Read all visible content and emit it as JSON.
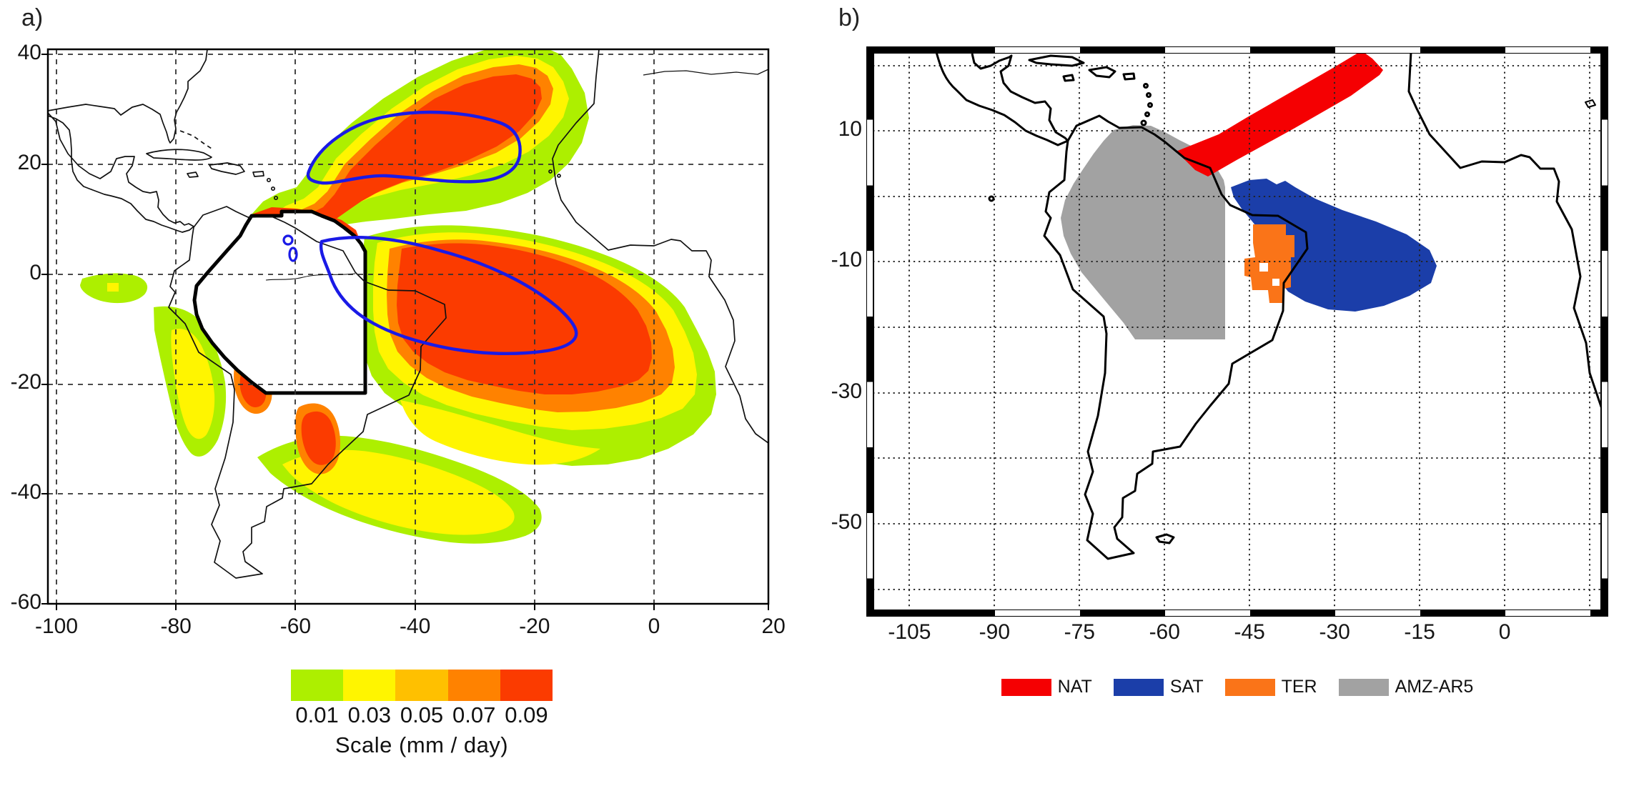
{
  "figure": {
    "panel_a": {
      "label": "a)",
      "x_ticks": [
        "-100",
        "-80",
        "-60",
        "-40",
        "-20",
        "0",
        "20"
      ],
      "y_ticks": [
        "40",
        "20",
        "0",
        "-20",
        "-40",
        "-60"
      ],
      "colorbar": {
        "values": [
          "0.01",
          "0.03",
          "0.05",
          "0.07",
          "0.09"
        ],
        "colors": [
          "#ADEF00",
          "#FFF500",
          "#FFC000",
          "#FF8200",
          "#FB3B00"
        ],
        "title": "Scale (mm / day)"
      },
      "overlay_colors": {
        "amazon_outline": "#000000",
        "contour": "#1A1AE6"
      }
    },
    "panel_b": {
      "label": "b)",
      "x_ticks": [
        "-105",
        "-90",
        "-75",
        "-60",
        "-45",
        "-30",
        "-15",
        "0"
      ],
      "y_ticks": [
        "10",
        "-10",
        "-30",
        "-50"
      ],
      "legend": [
        {
          "label": "NAT",
          "color": "#F50002"
        },
        {
          "label": "SAT",
          "color": "#1B3EA9"
        },
        {
          "label": "TER",
          "color": "#FA7418"
        },
        {
          "label": "AMZ-AR5",
          "color": "#A2A2A2"
        }
      ]
    }
  },
  "chart_data": [
    {
      "type": "heatmap",
      "panel": "a",
      "description": "Moisture source intensity map over South America and the Atlantic",
      "lon_range": [
        -100,
        20
      ],
      "lat_range": [
        -60,
        40
      ],
      "lon_ticks": [
        -100,
        -80,
        -60,
        -40,
        -20,
        0,
        20
      ],
      "lat_ticks": [
        40,
        20,
        0,
        -20,
        -40,
        -60
      ],
      "colorbar_title": "Scale (mm / day)",
      "colorbar_bins": [
        0.01,
        0.03,
        0.05,
        0.07,
        0.09
      ],
      "colorbar_colors": [
        "#ADEF00",
        "#FFF500",
        "#FFC000",
        "#FF8200",
        "#FB3B00"
      ],
      "overlays": [
        "black thick outline of Amazon basin region",
        "blue contours over North and South tropical Atlantic maxima",
        "gridlines dashed"
      ]
    },
    {
      "type": "heatmap",
      "panel": "b",
      "description": "Region masks map",
      "lon_range": [
        -111,
        17
      ],
      "lat_range": [
        -62,
        21
      ],
      "lon_ticks": [
        -105,
        -90,
        -75,
        -60,
        -45,
        -30,
        -15,
        0
      ],
      "lat_ticks": [
        10,
        -10,
        -30,
        -50
      ],
      "regions": [
        {
          "name": "NAT",
          "color": "#F50002",
          "location": "northern tropical Atlantic diagonal band"
        },
        {
          "name": "SAT",
          "color": "#1B3EA9",
          "location": "southern tropical Atlantic off northeast Brazil"
        },
        {
          "name": "TER",
          "color": "#FA7418",
          "location": "terrestrial patch over northeast Brazil"
        },
        {
          "name": "AMZ-AR5",
          "color": "#A2A2A2",
          "location": "Amazon basin"
        }
      ],
      "gridlines": "dotted"
    }
  ]
}
